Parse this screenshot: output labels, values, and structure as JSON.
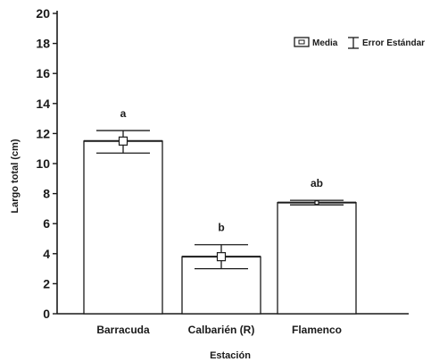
{
  "chart_data": {
    "type": "bar",
    "xlabel": "Estación",
    "ylabel": "Largo total (cm)",
    "categories": [
      "Barracuda",
      "Calbarién (R)",
      "Flamenco"
    ],
    "values": [
      11.5,
      3.8,
      7.4
    ],
    "error_low": [
      10.7,
      3.0,
      7.25
    ],
    "error_high": [
      12.2,
      4.6,
      7.55
    ],
    "significance_labels": [
      "a",
      "b",
      "ab"
    ],
    "yticks": [
      0,
      2,
      4,
      6,
      8,
      10,
      12,
      14,
      16,
      18,
      20
    ],
    "ylim": [
      0,
      20
    ],
    "grid": false,
    "legend": {
      "position": "top-right",
      "mean_label": "Media",
      "error_label": "Error Estándar"
    }
  }
}
